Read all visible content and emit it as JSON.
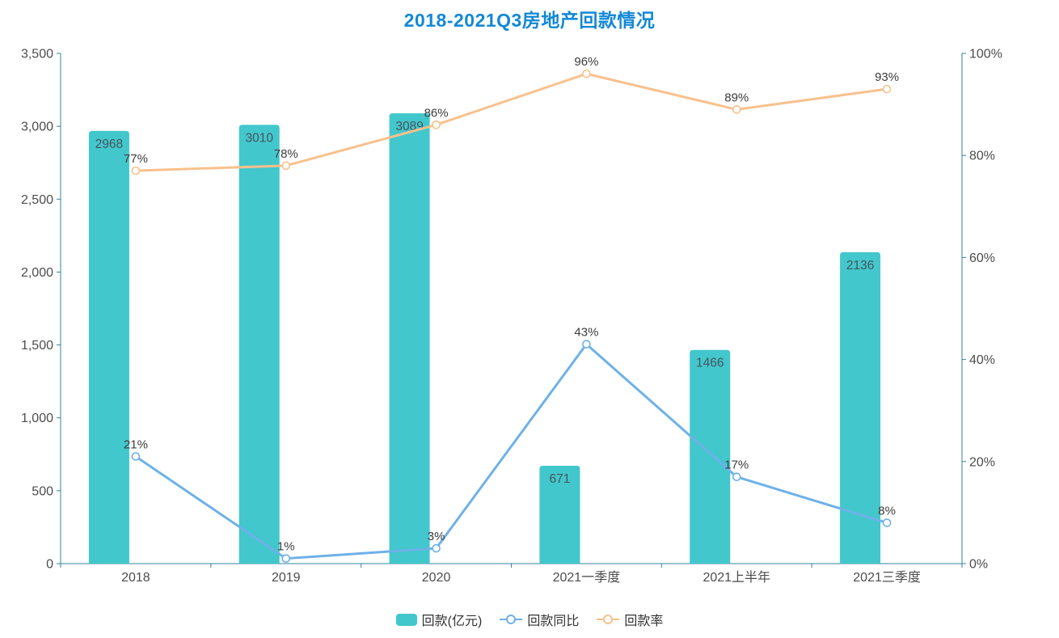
{
  "title": "2018-2021Q3房地产回款情况",
  "colors": {
    "title": "#1388d6",
    "axis_line": "#31859b",
    "axis_label": "#4d4d4d",
    "bar_value_label": "#47545c",
    "point_value_label": "#3c3c3c",
    "bar": "#42c7cc",
    "yoy_line": "#6eb1e8",
    "rate_line": "#f8c18d"
  },
  "chart_data": {
    "type": "bar",
    "subtype": "bar-line combo, dual y-axis",
    "title": "2018-2021Q3房地产回款情况",
    "categories": [
      "2018",
      "2019",
      "2020",
      "2021一季度",
      "2021上半年",
      "2021三季度"
    ],
    "series": [
      {
        "name": "回款(亿元)",
        "type": "bar",
        "axis": "left",
        "color": "#42c7cc",
        "values": [
          2968,
          3010,
          3089,
          671,
          1466,
          2136
        ],
        "labels": [
          "2968",
          "3010",
          "3089",
          "671",
          "1466",
          "2136"
        ]
      },
      {
        "name": "回款同比",
        "type": "line",
        "axis": "right",
        "color": "#6eb1e8",
        "values": [
          21,
          1,
          3,
          43,
          17,
          8
        ],
        "labels": [
          "21%",
          "1%",
          "3%",
          "43%",
          "17%",
          "8%"
        ]
      },
      {
        "name": "回款率",
        "type": "line",
        "axis": "right",
        "color": "#f8c18d",
        "values": [
          77,
          78,
          86,
          96,
          89,
          93
        ],
        "labels": [
          "77%",
          "78%",
          "86%",
          "96%",
          "89%",
          "93%"
        ]
      }
    ],
    "left_axis": {
      "min": 0,
      "max": 3500,
      "tick_labels": [
        "3,500",
        "3,000",
        "2,500",
        "2,000",
        "1,500",
        "1,000",
        "500",
        "0"
      ]
    },
    "right_axis": {
      "min": 0,
      "max": 100,
      "tick_labels": [
        "100%",
        "80%",
        "60%",
        "40%",
        "20%",
        "0%"
      ]
    },
    "grid": false,
    "legend_position": "bottom",
    "legend": [
      "回款(亿元)",
      "回款同比",
      "回款率"
    ]
  }
}
